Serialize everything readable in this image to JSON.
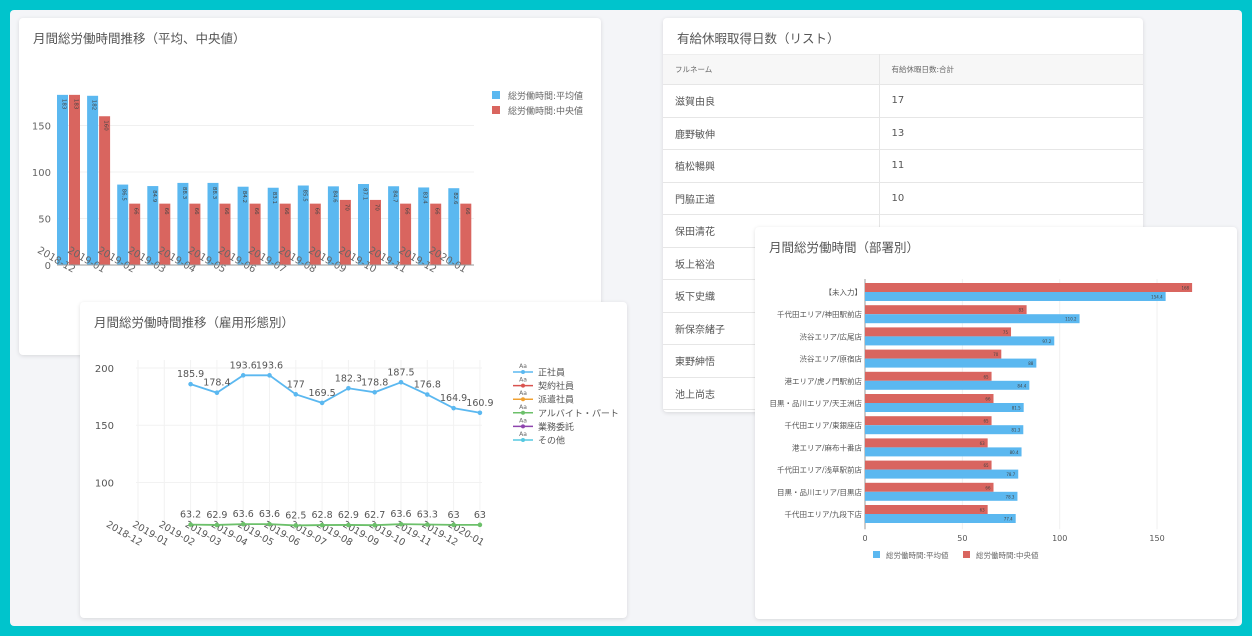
{
  "cards": {
    "bar": {
      "title": "月間総労働時間推移（平均、中央値）",
      "legend": [
        "総労働時間:平均値",
        "総労働時間:中央値"
      ]
    },
    "line": {
      "title": "月間総労働時間推移（雇用形態別）",
      "legend": [
        "正社員",
        "契約社員",
        "派遣社員",
        "アルバイト・パート",
        "業務委託",
        "その他"
      ],
      "legend_marker_label": "Aa"
    },
    "table": {
      "title": "有給休暇取得日数（リスト）",
      "columns": [
        "フルネーム",
        "有給休暇日数:合計"
      ],
      "rows": [
        [
          "滋賀由良",
          "17"
        ],
        [
          "鹿野敏伸",
          "13"
        ],
        [
          "植松暢興",
          "11"
        ],
        [
          "門脇正道",
          "10"
        ],
        [
          "保田清花",
          ""
        ],
        [
          "坂上裕治",
          ""
        ],
        [
          "坂下史織",
          ""
        ],
        [
          "新保奈緒子",
          ""
        ],
        [
          "東野紳悟",
          ""
        ],
        [
          "池上尚志",
          ""
        ]
      ]
    },
    "hbar": {
      "title": "月間総労働時間（部署別）",
      "legend": [
        "総労働時間:平均値",
        "総労働時間:中央値"
      ]
    }
  },
  "colors": {
    "avg": "#5bb8f0",
    "median": "#d9655f",
    "regular": "#5bb8f0",
    "contract": "#d9534f",
    "dispatch": "#f0a030",
    "parttime": "#6cc06a",
    "outsourced": "#8e44ad",
    "other": "#56c8e0",
    "frame": "#00c4cc"
  },
  "chart_data": [
    {
      "type": "bar",
      "title": "月間総労働時間推移（平均、中央値）",
      "categories": [
        "2018-12",
        "2019-01",
        "2019-02",
        "2019-03",
        "2019-04",
        "2019-05",
        "2019-06",
        "2019-07",
        "2019-08",
        "2019-09",
        "2019-10",
        "2019-11",
        "2019-12",
        "2020-01"
      ],
      "series": [
        {
          "name": "総労働時間:平均値",
          "values": [
            183,
            182,
            86.5,
            84.9,
            88.3,
            88.3,
            84.2,
            83.1,
            85.5,
            84.6,
            87.1,
            84.7,
            83.4,
            82.6
          ]
        },
        {
          "name": "総労働時間:中央値",
          "values": [
            183,
            160,
            66,
            66,
            66,
            66,
            66,
            66,
            66,
            70,
            70,
            66,
            66,
            66
          ]
        }
      ],
      "yticks": [
        0,
        50,
        100,
        150
      ],
      "ylim": [
        0,
        185
      ],
      "legend_position": "right"
    },
    {
      "type": "line",
      "title": "月間総労働時間推移（雇用形態別）",
      "categories": [
        "2018-12",
        "2019-01",
        "2019-02",
        "2019-03",
        "2019-04",
        "2019-05",
        "2019-06",
        "2019-07",
        "2019-08",
        "2019-09",
        "2019-10",
        "2019-11",
        "2019-12",
        "2020-01"
      ],
      "series": [
        {
          "name": "正社員",
          "values": [
            null,
            null,
            185.9,
            178.4,
            193.6,
            193.6,
            177,
            169.5,
            182.3,
            178.8,
            187.5,
            176.8,
            164.9,
            160.9
          ]
        },
        {
          "name": "アルバイト・パート",
          "values": [
            null,
            null,
            63.2,
            62.9,
            63.6,
            63.6,
            62.5,
            62.8,
            62.9,
            62.7,
            63.6,
            63.3,
            63,
            63
          ]
        }
      ],
      "legend": [
        "正社員",
        "契約社員",
        "派遣社員",
        "アルバイト・パート",
        "業務委託",
        "その他"
      ],
      "yticks": [
        100,
        150,
        200
      ],
      "ylim": [
        55,
        205
      ],
      "grid": true,
      "legend_position": "right"
    },
    {
      "type": "bar",
      "orientation": "horizontal",
      "title": "月間総労働時間（部署別）",
      "categories": [
        "【未入力】",
        "千代田エリア/神田駅前店",
        "渋谷エリア/広尾店",
        "渋谷エリア/原宿店",
        "港エリア/虎ノ門駅前店",
        "目黒・品川エリア/天王洲店",
        "千代田エリア/東銀座店",
        "港エリア/麻布十番店",
        "千代田エリア/浅草駅前店",
        "目黒・品川エリア/目黒店",
        "千代田エリア/九段下店"
      ],
      "series": [
        {
          "name": "総労働時間:平均値",
          "values": [
            154.4,
            110.2,
            97.2,
            88,
            84.4,
            81.5,
            81.3,
            80.4,
            78.7,
            78.3,
            77.4
          ]
        },
        {
          "name": "総労働時間:中央値",
          "values": [
            168,
            83,
            75,
            70,
            65,
            66,
            65,
            63,
            65,
            66,
            63
          ]
        }
      ],
      "xticks": [
        0,
        50,
        100,
        150
      ],
      "xlim": [
        0,
        170
      ],
      "legend_position": "bottom"
    }
  ]
}
